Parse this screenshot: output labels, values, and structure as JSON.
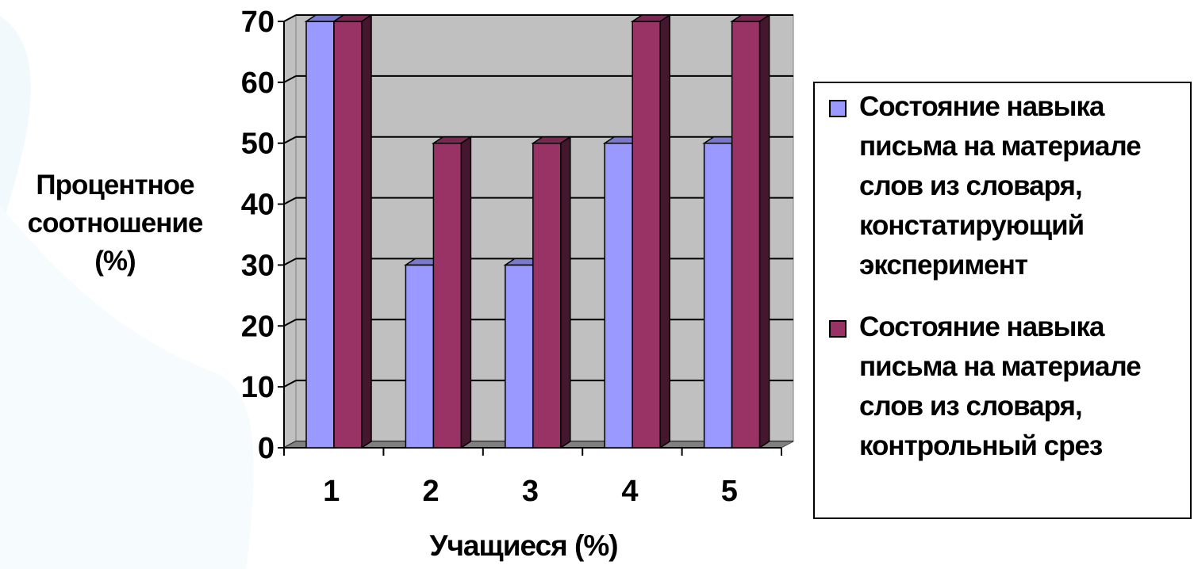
{
  "chart_data": {
    "type": "bar",
    "categories": [
      "1",
      "2",
      "3",
      "4",
      "5"
    ],
    "series": [
      {
        "name": "Состояние навыка письма на материале слов из словаря, констатирующий эксперимент",
        "color": "#9999ff",
        "values": [
          70,
          30,
          30,
          50,
          50
        ]
      },
      {
        "name": "Состояние навыка письма на материале слов из словаря, контрольный срез",
        "color": "#993366",
        "values": [
          70,
          50,
          50,
          70,
          70
        ]
      }
    ],
    "ylim": [
      0,
      70
    ],
    "yticks": [
      0,
      10,
      20,
      30,
      40,
      50,
      60,
      70
    ],
    "ylabel_lines": [
      "Процентное",
      "соотношение",
      "(%)"
    ],
    "xlabel": "Учащиеся (%)",
    "legend_lines": [
      [
        "Состояние навыка",
        "письма на материале",
        "слов из словаря,",
        "констатирующий",
        "эксперимент"
      ],
      [
        "Состояние навыка",
        "письма на материале",
        "слов из словаря,",
        "контрольный срез"
      ]
    ],
    "grid": true,
    "legend_position": "right",
    "colors": {
      "plot_background": "#c0c0c0",
      "floor": "#808080"
    }
  }
}
